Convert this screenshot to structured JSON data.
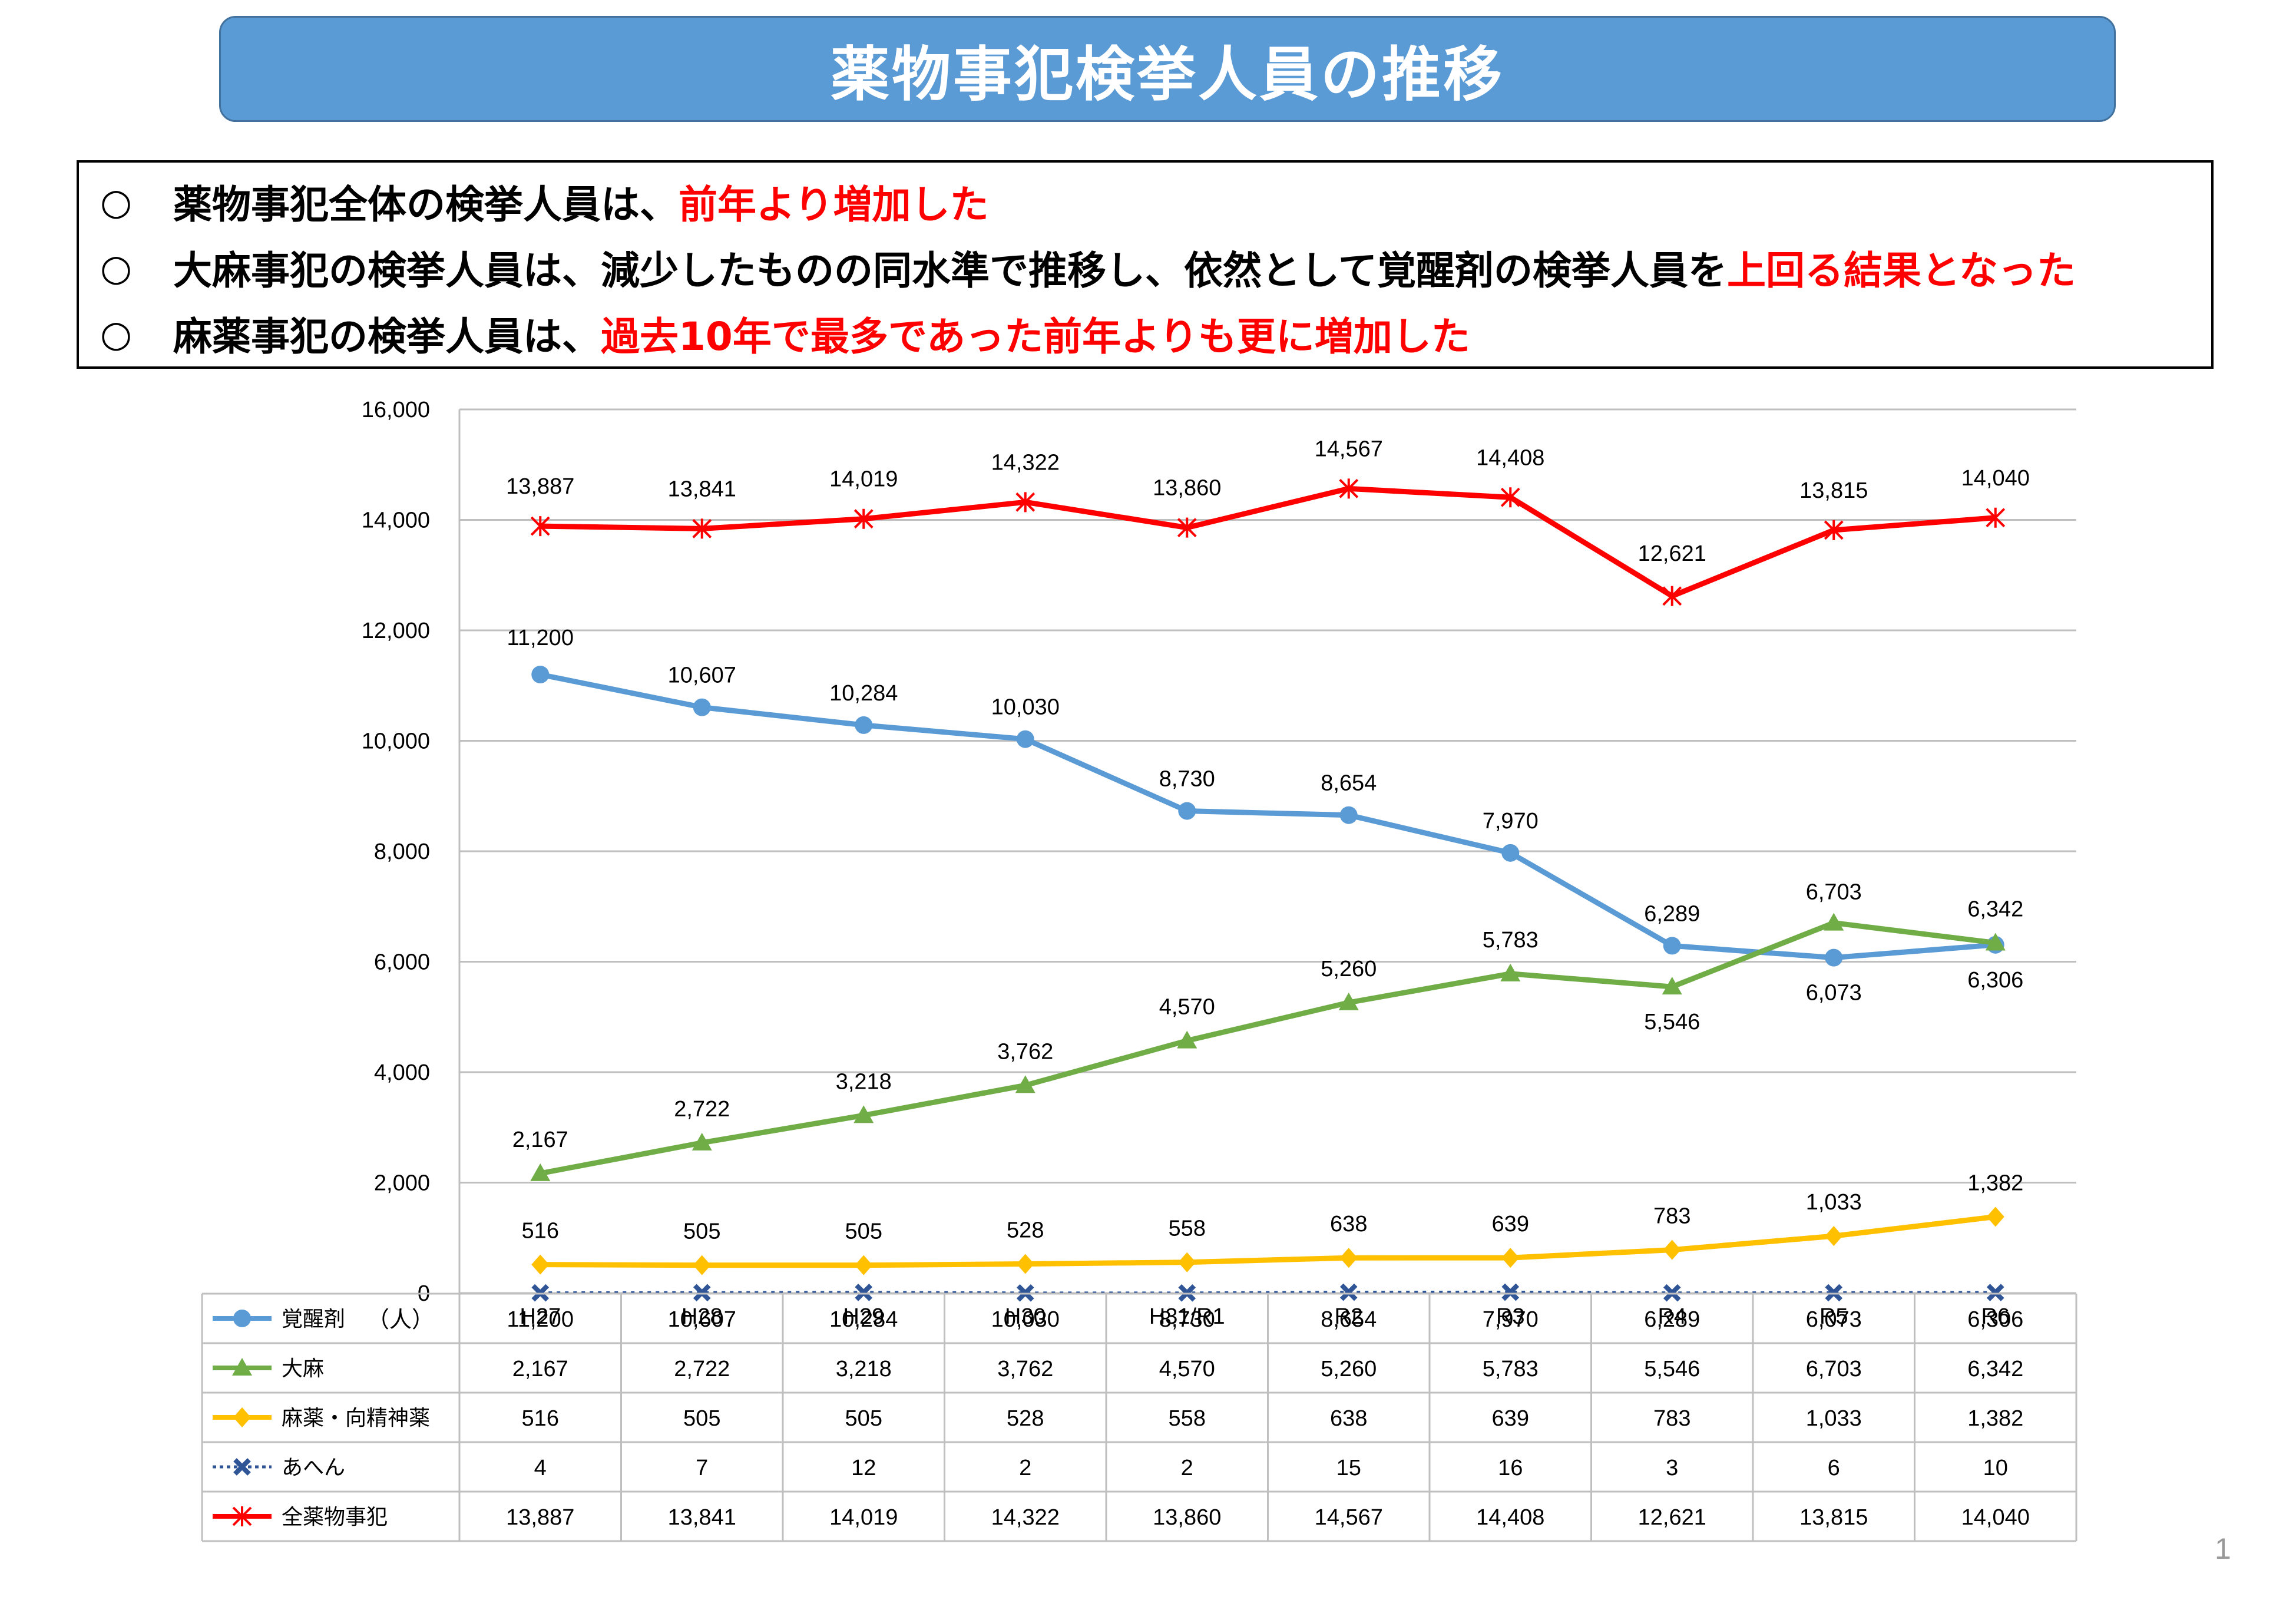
{
  "title": "薬物事犯検挙人員の推移",
  "summary": [
    {
      "bullet": "○",
      "parts": [
        {
          "text": "薬物事犯全体の検挙人員は、",
          "highlight": false
        },
        {
          "text": "前年より増加した",
          "highlight": true
        }
      ]
    },
    {
      "bullet": "○",
      "parts": [
        {
          "text": "大麻事犯の検挙人員は、減少したものの同水準で推移し、依然として覚醒剤の検挙人員を",
          "highlight": false
        },
        {
          "text": "上回る結果となった",
          "highlight": true
        }
      ]
    },
    {
      "bullet": "○",
      "parts": [
        {
          "text": "麻薬事犯の検挙人員は、",
          "highlight": false
        },
        {
          "text": "過去10年で最多であった前年よりも更に増加した",
          "highlight": true
        }
      ]
    }
  ],
  "highlight_color": "#ff0000",
  "page_number": "1",
  "chart_data": {
    "type": "line",
    "categories": [
      "H27",
      "H28",
      "H29",
      "H30",
      "H31/R1",
      "R2",
      "R3",
      "R4",
      "R5",
      "R6"
    ],
    "ylim": [
      0,
      16000
    ],
    "yticks": [
      0,
      2000,
      4000,
      6000,
      8000,
      10000,
      12000,
      14000,
      16000
    ],
    "ytick_labels": [
      "0",
      "2,000",
      "4,000",
      "6,000",
      "8,000",
      "10,000",
      "12,000",
      "14,000",
      "16,000"
    ],
    "ylabel": "（人）",
    "grid": true,
    "series": [
      {
        "name": "覚醒剤",
        "color": "#5b9bd5",
        "marker": "circle",
        "dash": false,
        "show_labels": true,
        "values": [
          11200,
          10607,
          10284,
          10030,
          8730,
          8654,
          7970,
          6289,
          6073,
          6306
        ],
        "labels": [
          "11,200",
          "10,607",
          "10,284",
          "10,030",
          "8,730",
          "8,654",
          "7,970",
          "6,289",
          "6,073",
          "6,306"
        ]
      },
      {
        "name": "大麻",
        "color": "#70ad47",
        "marker": "triangle",
        "dash": false,
        "show_labels": true,
        "values": [
          2167,
          2722,
          3218,
          3762,
          4570,
          5260,
          5783,
          5546,
          6703,
          6342
        ],
        "labels": [
          "2,167",
          "2,722",
          "3,218",
          "3,762",
          "4,570",
          "5,260",
          "5,783",
          "5,546",
          "6,703",
          "6,342"
        ]
      },
      {
        "name": "麻薬・向精神薬",
        "color": "#ffc000",
        "marker": "diamond",
        "dash": false,
        "show_labels": true,
        "values": [
          516,
          505,
          505,
          528,
          558,
          638,
          639,
          783,
          1033,
          1382
        ],
        "labels": [
          "516",
          "505",
          "505",
          "528",
          "558",
          "638",
          "639",
          "783",
          "1,033",
          "1,382"
        ]
      },
      {
        "name": "あへん",
        "color": "#2f5597",
        "marker": "x",
        "dash": true,
        "show_labels": false,
        "values": [
          4,
          7,
          12,
          2,
          2,
          15,
          16,
          3,
          6,
          10
        ],
        "labels": [
          "4",
          "7",
          "12",
          "2",
          "2",
          "15",
          "16",
          "3",
          "6",
          "10"
        ]
      },
      {
        "name": "全薬物事犯",
        "color": "#ff0000",
        "marker": "star",
        "dash": false,
        "show_labels": true,
        "values": [
          13887,
          13841,
          14019,
          14322,
          13860,
          14567,
          14408,
          12621,
          13815,
          14040
        ],
        "labels": [
          "13,887",
          "13,841",
          "14,019",
          "14,322",
          "13,860",
          "14,567",
          "14,408",
          "12,621",
          "13,815",
          "14,040"
        ]
      }
    ]
  }
}
